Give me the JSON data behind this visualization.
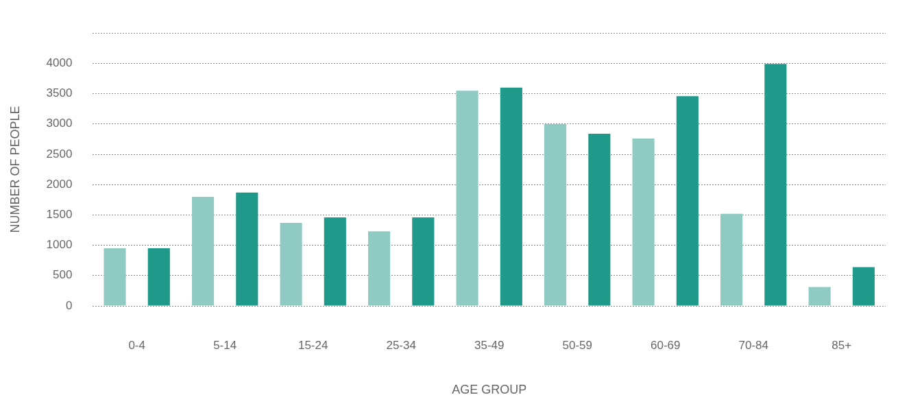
{
  "chart_data": {
    "type": "bar",
    "xlabel": "AGE GROUP",
    "ylabel": "NUMBER OF PEOPLE",
    "categories": [
      "0-4",
      "5-14",
      "15-24",
      "25-34",
      "35-49",
      "50-59",
      "60-69",
      "70-84",
      "85+"
    ],
    "series": [
      {
        "color": "#8fcbc3",
        "values": [
          950,
          1800,
          1370,
          1230,
          3550,
          3000,
          2760,
          1520,
          310
        ]
      },
      {
        "color": "#1f9a8a",
        "values": [
          950,
          1870,
          1460,
          1460,
          3600,
          2840,
          3460,
          3990,
          640
        ]
      }
    ],
    "ylim": [
      0,
      4500
    ],
    "yticks": [
      0,
      500,
      1000,
      1500,
      2000,
      2500,
      3000,
      3500,
      4000,
      {
        "value": 4500,
        "label": null
      }
    ],
    "grid": "y"
  }
}
